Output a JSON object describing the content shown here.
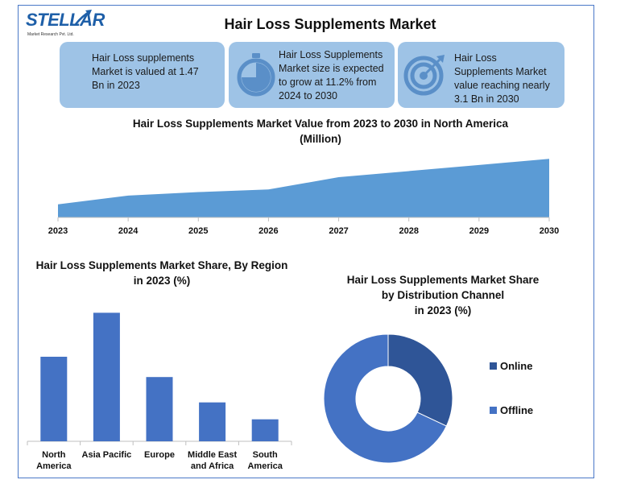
{
  "header": {
    "logo_text": "STELLAR",
    "logo_subtext": "Market Research Pvt. Ltd.",
    "title": "Hair Loss Supplements Market"
  },
  "cards": [
    {
      "text": [
        "Hair Loss supplements",
        "Market is valued at 1.47",
        "Bn in 2023"
      ],
      "icon": "none"
    },
    {
      "text": [
        "Hair Loss Supplements",
        "Market size is expected",
        "to grow at 11.2% from",
        "2024 to 2030"
      ],
      "icon": "stopwatch-icon"
    },
    {
      "text": [
        "Hair Loss",
        "Supplements Market",
        "value reaching nearly",
        "3.1 Bn in 2030"
      ],
      "icon": "target-icon"
    }
  ],
  "colors": {
    "card_bg": "#9ec3e6",
    "area": "#5b9bd5",
    "bar": "#4472c4",
    "online": "#2f5597",
    "offline": "#4472c4",
    "frame": "#4a78c8"
  },
  "chart_data": [
    {
      "type": "area",
      "title_lines": [
        "Hair Loss Supplements Market Value from 2023 to 2030 in North America",
        "(Million)"
      ],
      "x": [
        "2023",
        "2024",
        "2025",
        "2026",
        "2027",
        "2028",
        "2029",
        "2030"
      ],
      "values": [
        15,
        25,
        29,
        32,
        46,
        53,
        60,
        67
      ],
      "ylim": [
        0,
        70
      ],
      "grid": false,
      "legend": "none"
    },
    {
      "type": "bar",
      "title_lines": [
        "Hair Loss Supplements Market Share, By Region",
        "in 2023 (%)"
      ],
      "categories": [
        [
          "North",
          "America"
        ],
        [
          "Asia Pacific"
        ],
        [
          "Europe"
        ],
        [
          "Middle East",
          "and Africa"
        ],
        [
          "South",
          "America"
        ]
      ],
      "values": [
        25,
        38,
        19,
        11.5,
        6.5
      ],
      "ylim": [
        0,
        40
      ],
      "grid": false,
      "legend": "none"
    },
    {
      "type": "pie",
      "title_lines": [
        "Hair Loss Supplements Market Share",
        "by Distribution Channel",
        "in 2023 (%)"
      ],
      "slices": [
        {
          "label": "Online",
          "value": 32
        },
        {
          "label": "Offline",
          "value": 68
        }
      ],
      "legend": "right"
    }
  ]
}
